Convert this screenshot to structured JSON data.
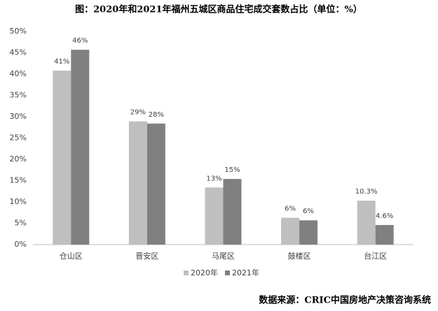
{
  "chart_data": {
    "type": "bar",
    "title": "图：2020年和2021年福州五城区商品住宅成交套数占比（单位：%）",
    "source": "数据来源：CRIC中国房地产决策咨询系统",
    "categories": [
      "仓山区",
      "晋安区",
      "马尾区",
      "鼓楼区",
      "台江区"
    ],
    "series": [
      {
        "name": "2020年",
        "color": "#bfbfbf",
        "values": [
          40.8,
          28.9,
          13.4,
          6.3,
          10.3
        ],
        "value_labels": [
          "41%",
          "29%",
          "13%",
          "6%",
          "10.3%"
        ]
      },
      {
        "name": "2021年",
        "color": "#808080",
        "values": [
          45.7,
          28.4,
          15.4,
          5.7,
          4.6
        ],
        "value_labels": [
          "46%",
          "28%",
          "15%",
          "6%",
          "4.6%"
        ]
      }
    ],
    "ylim": [
      0,
      50
    ],
    "yticks": [
      {
        "value": 0,
        "label": "0%"
      },
      {
        "value": 5,
        "label": "5%"
      },
      {
        "value": 10,
        "label": "10%"
      },
      {
        "value": 15,
        "label": "15%"
      },
      {
        "value": 20,
        "label": "20%"
      },
      {
        "value": 25,
        "label": "25%"
      },
      {
        "value": 30,
        "label": "30%"
      },
      {
        "value": 35,
        "label": "35%"
      },
      {
        "value": 40,
        "label": "40%"
      },
      {
        "value": 45,
        "label": "45%"
      },
      {
        "value": 50,
        "label": "50%"
      }
    ],
    "legend": "bottom"
  }
}
